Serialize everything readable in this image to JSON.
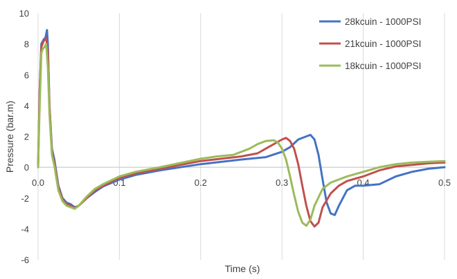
{
  "chart_data": {
    "type": "line",
    "title": "",
    "xlabel": "Time (s)",
    "ylabel": "Pressure (bar.m)",
    "xlim": [
      0,
      0.5
    ],
    "ylim": [
      -6,
      10
    ],
    "x_ticks": [
      0,
      0.1,
      0.2,
      0.3,
      0.4,
      0.5
    ],
    "x_tick_labels": [
      "0.0",
      "0.1",
      "0.2",
      "0.3",
      "0.4",
      "0.5"
    ],
    "y_ticks": [
      -6,
      -4,
      -2,
      0,
      2,
      4,
      6,
      8,
      10
    ],
    "grid": "vertical",
    "legend_position": "top-right",
    "series": [
      {
        "name": "28kcuin - 1000PSI",
        "color": "#4472C4",
        "points": [
          [
            0,
            0
          ],
          [
            0.002,
            5
          ],
          [
            0.004,
            8.0
          ],
          [
            0.007,
            8.3
          ],
          [
            0.009,
            8.4
          ],
          [
            0.011,
            8.9
          ],
          [
            0.012,
            8.0
          ],
          [
            0.014,
            4.0
          ],
          [
            0.017,
            1.2
          ],
          [
            0.02,
            0.5
          ],
          [
            0.025,
            -1.2
          ],
          [
            0.03,
            -2.0
          ],
          [
            0.035,
            -2.3
          ],
          [
            0.04,
            -2.4
          ],
          [
            0.045,
            -2.6
          ],
          [
            0.05,
            -2.5
          ],
          [
            0.06,
            -2.0
          ],
          [
            0.07,
            -1.6
          ],
          [
            0.08,
            -1.25
          ],
          [
            0.1,
            -0.8
          ],
          [
            0.12,
            -0.5
          ],
          [
            0.15,
            -0.2
          ],
          [
            0.2,
            0.2
          ],
          [
            0.25,
            0.5
          ],
          [
            0.28,
            0.65
          ],
          [
            0.3,
            1.0
          ],
          [
            0.31,
            1.3
          ],
          [
            0.32,
            1.8
          ],
          [
            0.33,
            2.0
          ],
          [
            0.335,
            2.1
          ],
          [
            0.34,
            1.8
          ],
          [
            0.345,
            0.8
          ],
          [
            0.35,
            -0.8
          ],
          [
            0.355,
            -2.3
          ],
          [
            0.36,
            -3.0
          ],
          [
            0.365,
            -3.1
          ],
          [
            0.37,
            -2.5
          ],
          [
            0.38,
            -1.5
          ],
          [
            0.39,
            -1.2
          ],
          [
            0.4,
            -1.2
          ],
          [
            0.42,
            -1.1
          ],
          [
            0.44,
            -0.6
          ],
          [
            0.46,
            -0.3
          ],
          [
            0.48,
            -0.1
          ],
          [
            0.5,
            0
          ]
        ]
      },
      {
        "name": "21kcuin - 1000PSI",
        "color": "#C0504D",
        "points": [
          [
            0,
            0
          ],
          [
            0.002,
            5
          ],
          [
            0.004,
            7.8
          ],
          [
            0.007,
            8.2
          ],
          [
            0.009,
            8.3
          ],
          [
            0.01,
            8.4
          ],
          [
            0.012,
            7.5
          ],
          [
            0.014,
            4.0
          ],
          [
            0.017,
            1.0
          ],
          [
            0.02,
            0.3
          ],
          [
            0.025,
            -1.3
          ],
          [
            0.03,
            -2.1
          ],
          [
            0.035,
            -2.4
          ],
          [
            0.04,
            -2.5
          ],
          [
            0.045,
            -2.65
          ],
          [
            0.05,
            -2.5
          ],
          [
            0.06,
            -2.0
          ],
          [
            0.07,
            -1.5
          ],
          [
            0.08,
            -1.2
          ],
          [
            0.1,
            -0.7
          ],
          [
            0.12,
            -0.4
          ],
          [
            0.15,
            -0.1
          ],
          [
            0.2,
            0.4
          ],
          [
            0.25,
            0.7
          ],
          [
            0.27,
            0.9
          ],
          [
            0.28,
            1.2
          ],
          [
            0.29,
            1.5
          ],
          [
            0.3,
            1.8
          ],
          [
            0.305,
            1.9
          ],
          [
            0.31,
            1.7
          ],
          [
            0.315,
            1.2
          ],
          [
            0.32,
            0.2
          ],
          [
            0.325,
            -1.2
          ],
          [
            0.33,
            -2.5
          ],
          [
            0.335,
            -3.5
          ],
          [
            0.34,
            -3.85
          ],
          [
            0.345,
            -3.6
          ],
          [
            0.35,
            -2.6
          ],
          [
            0.36,
            -1.7
          ],
          [
            0.37,
            -1.2
          ],
          [
            0.38,
            -0.9
          ],
          [
            0.4,
            -0.6
          ],
          [
            0.42,
            -0.2
          ],
          [
            0.44,
            0.05
          ],
          [
            0.46,
            0.15
          ],
          [
            0.48,
            0.25
          ],
          [
            0.5,
            0.3
          ]
        ]
      },
      {
        "name": "18kcuin - 1000PSI",
        "color": "#9BBB59",
        "points": [
          [
            0,
            0
          ],
          [
            0.002,
            4
          ],
          [
            0.004,
            7.4
          ],
          [
            0.006,
            7.7
          ],
          [
            0.008,
            7.8
          ],
          [
            0.01,
            8.0
          ],
          [
            0.012,
            6.5
          ],
          [
            0.014,
            3.5
          ],
          [
            0.017,
            0.8
          ],
          [
            0.02,
            0.1
          ],
          [
            0.025,
            -1.5
          ],
          [
            0.03,
            -2.2
          ],
          [
            0.035,
            -2.5
          ],
          [
            0.04,
            -2.6
          ],
          [
            0.045,
            -2.7
          ],
          [
            0.05,
            -2.5
          ],
          [
            0.06,
            -1.9
          ],
          [
            0.07,
            -1.4
          ],
          [
            0.08,
            -1.1
          ],
          [
            0.1,
            -0.6
          ],
          [
            0.12,
            -0.3
          ],
          [
            0.15,
            0.0
          ],
          [
            0.2,
            0.55
          ],
          [
            0.22,
            0.7
          ],
          [
            0.24,
            0.8
          ],
          [
            0.26,
            1.2
          ],
          [
            0.27,
            1.5
          ],
          [
            0.28,
            1.7
          ],
          [
            0.29,
            1.75
          ],
          [
            0.295,
            1.6
          ],
          [
            0.3,
            1.2
          ],
          [
            0.305,
            0.5
          ],
          [
            0.31,
            -0.6
          ],
          [
            0.315,
            -1.8
          ],
          [
            0.32,
            -2.9
          ],
          [
            0.325,
            -3.6
          ],
          [
            0.33,
            -3.8
          ],
          [
            0.335,
            -3.4
          ],
          [
            0.34,
            -2.5
          ],
          [
            0.35,
            -1.4
          ],
          [
            0.36,
            -1.0
          ],
          [
            0.38,
            -0.6
          ],
          [
            0.4,
            -0.3
          ],
          [
            0.42,
            0.0
          ],
          [
            0.44,
            0.2
          ],
          [
            0.46,
            0.3
          ],
          [
            0.48,
            0.35
          ],
          [
            0.5,
            0.4
          ]
        ]
      }
    ]
  }
}
